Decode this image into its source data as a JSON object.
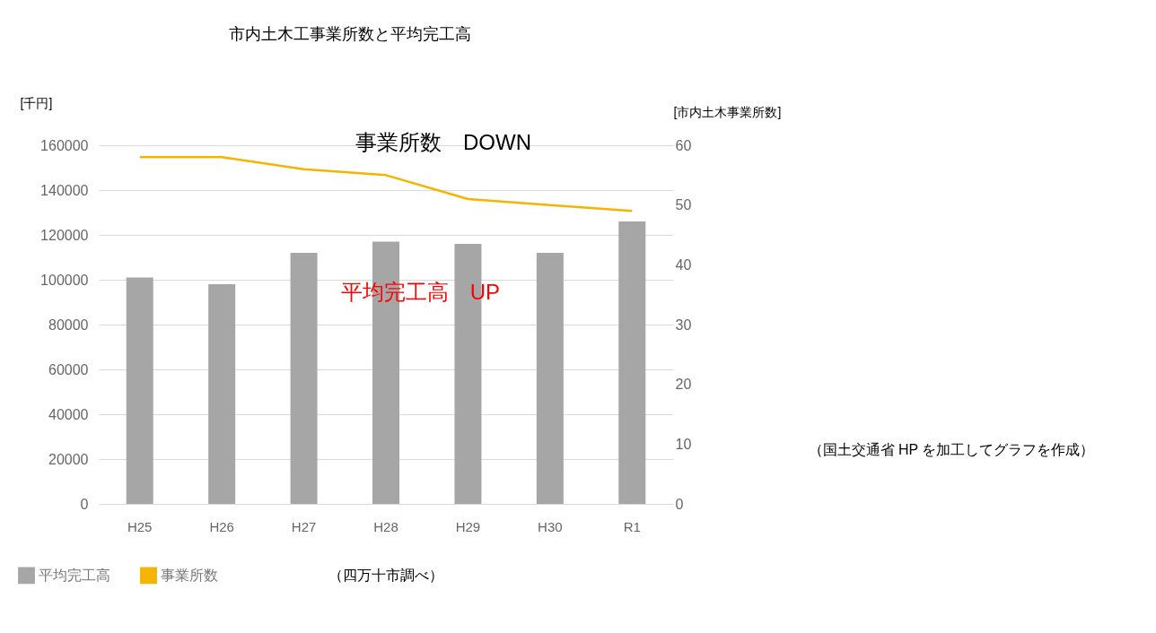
{
  "chart_data": {
    "type": "bar",
    "title": "市内土木工事業所数と平均完工高",
    "ylabel": "[千円]",
    "y2label": "[市内土木事業所数]",
    "categories": [
      "H25",
      "H26",
      "H27",
      "H28",
      "H29",
      "H30",
      "R1"
    ],
    "series": [
      {
        "name": "平均完工高",
        "color": "#a6a6a6",
        "values": [
          101000,
          98000,
          112000,
          117000,
          116000,
          112000,
          126000
        ]
      },
      {
        "name": "事業所数",
        "type": "line",
        "axis": "y2",
        "color": "#f5b400",
        "values": [
          58,
          58,
          56,
          55,
          51,
          50,
          49
        ]
      }
    ],
    "ylim": [
      0,
      160000
    ],
    "yticks": [
      0,
      20000,
      40000,
      60000,
      80000,
      100000,
      120000,
      140000,
      160000
    ],
    "y2lim": [
      0,
      60
    ],
    "y2ticks": [
      0,
      10,
      20,
      30,
      40,
      50,
      60
    ],
    "grid": "y",
    "legend": "bottom left",
    "marker": "none",
    "line_style": "solid",
    "annotations": [
      "事業所数　DOWN",
      "平均完工高　UP",
      "（四万十市調べ）",
      "（国土交通省 HP を加工してグラフを作成）"
    ]
  }
}
